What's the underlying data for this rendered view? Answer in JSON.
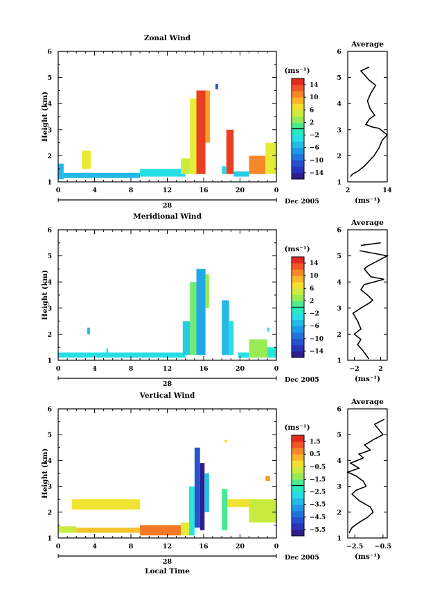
{
  "chart_data": [
    {
      "type": "heatmap",
      "title": "Zonal Wind",
      "ylabel": "Height (km)",
      "xticks": [
        "0",
        "4",
        "8",
        "12",
        "16",
        "20",
        "0"
      ],
      "yticks": [
        "1",
        "2",
        "3",
        "4",
        "5",
        "6"
      ],
      "xlim": [
        0,
        24
      ],
      "ylim": [
        1,
        6
      ],
      "date_tick": "28",
      "date_suffix": "Dec 2005",
      "colorbar": {
        "unit": "(ms⁻¹)",
        "labels": [
          "14",
          "10",
          "6",
          "2",
          "−2",
          "−6",
          "−10",
          "−14"
        ],
        "range": [
          -16,
          16
        ]
      },
      "cells": [
        {
          "x": [
            0,
            0.6
          ],
          "y": [
            1.1,
            1.7
          ],
          "v": -5
        },
        {
          "x": [
            0.6,
            9
          ],
          "y": [
            1.15,
            1.35
          ],
          "v": -5
        },
        {
          "x": [
            2.6,
            3.6
          ],
          "y": [
            1.5,
            2.2
          ],
          "v": 6
        },
        {
          "x": [
            9,
            14
          ],
          "y": [
            1.2,
            1.5
          ],
          "v": -3
        },
        {
          "x": [
            13.5,
            14.5
          ],
          "y": [
            1.3,
            1.9
          ],
          "v": 5
        },
        {
          "x": [
            14.5,
            15.2
          ],
          "y": [
            1.3,
            4.2
          ],
          "v": 6
        },
        {
          "x": [
            15.2,
            16.2
          ],
          "y": [
            1.3,
            4.5
          ],
          "v": 14
        },
        {
          "x": [
            16.2,
            16.7
          ],
          "y": [
            2.5,
            4.5
          ],
          "v": 10
        },
        {
          "x": [
            18.5,
            19.3
          ],
          "y": [
            1.3,
            3.0
          ],
          "v": 14
        },
        {
          "x": [
            18,
            18.5
          ],
          "y": [
            1.3,
            1.6
          ],
          "v": -3
        },
        {
          "x": [
            17.3,
            17.6
          ],
          "y": [
            4.55,
            4.75
          ],
          "v": -10
        },
        {
          "x": [
            19.3,
            21
          ],
          "y": [
            1.2,
            1.4
          ],
          "v": -4
        },
        {
          "x": [
            21,
            22.8
          ],
          "y": [
            1.3,
            2.0
          ],
          "v": 11
        },
        {
          "x": [
            22.8,
            24
          ],
          "y": [
            1.3,
            2.5
          ],
          "v": 6
        }
      ],
      "profile": {
        "title": "Average",
        "xlabel": "(ms⁻¹)",
        "xticks": [
          "2",
          "14"
        ],
        "xlim": [
          2,
          14
        ],
        "points": [
          [
            8.5,
            5.4
          ],
          [
            6,
            5.25
          ],
          [
            8.5,
            4.9
          ],
          [
            10.5,
            4.7
          ],
          [
            9,
            4.4
          ],
          [
            8,
            4.1
          ],
          [
            8.8,
            3.8
          ],
          [
            10.2,
            3.55
          ],
          [
            8.5,
            3.4
          ],
          [
            7.5,
            3.2
          ],
          [
            9.5,
            3.1
          ],
          [
            11.5,
            3.05
          ],
          [
            14,
            2.8
          ],
          [
            12.5,
            2.6
          ],
          [
            11.5,
            2.3
          ],
          [
            10,
            2.0
          ],
          [
            8.5,
            1.8
          ],
          [
            7,
            1.6
          ],
          [
            5,
            1.4
          ],
          [
            3.5,
            1.3
          ],
          [
            2.8,
            1.2
          ]
        ]
      }
    },
    {
      "type": "heatmap",
      "title": "Meridional Wind",
      "ylabel": "Height (km)",
      "xticks": [
        "0",
        "4",
        "8",
        "12",
        "16",
        "20",
        "0"
      ],
      "yticks": [
        "1",
        "2",
        "3",
        "4",
        "5",
        "6"
      ],
      "xlim": [
        0,
        24
      ],
      "ylim": [
        1,
        6
      ],
      "date_tick": "28",
      "date_suffix": "Dec 2005",
      "colorbar": {
        "unit": "(ms⁻¹)",
        "labels": [
          "14",
          "10",
          "6",
          "2",
          "−2",
          "−6",
          "−10",
          "−14"
        ],
        "range": [
          -16,
          16
        ]
      },
      "cells": [
        {
          "x": [
            0,
            9
          ],
          "y": [
            1.1,
            1.3
          ],
          "v": -3
        },
        {
          "x": [
            3.2,
            3.5
          ],
          "y": [
            2.0,
            2.25
          ],
          "v": -5
        },
        {
          "x": [
            5.3,
            5.5
          ],
          "y": [
            1.3,
            1.45
          ],
          "v": -3
        },
        {
          "x": [
            9,
            14
          ],
          "y": [
            1.1,
            1.3
          ],
          "v": -3
        },
        {
          "x": [
            13.7,
            14.5
          ],
          "y": [
            1.2,
            2.5
          ],
          "v": -4
        },
        {
          "x": [
            14.5,
            15.2
          ],
          "y": [
            1.2,
            4.0
          ],
          "v": 2
        },
        {
          "x": [
            15.2,
            16.2
          ],
          "y": [
            1.2,
            4.5
          ],
          "v": -6
        },
        {
          "x": [
            16.2,
            16.6
          ],
          "y": [
            3.0,
            4.3
          ],
          "v": 3
        },
        {
          "x": [
            18,
            18.8
          ],
          "y": [
            1.2,
            3.3
          ],
          "v": -5
        },
        {
          "x": [
            18.8,
            19.3
          ],
          "y": [
            1.2,
            2.5
          ],
          "v": -3
        },
        {
          "x": [
            19.8,
            21
          ],
          "y": [
            1.1,
            1.3
          ],
          "v": -3
        },
        {
          "x": [
            21,
            23
          ],
          "y": [
            1.1,
            1.8
          ],
          "v": 3
        },
        {
          "x": [
            23,
            24
          ],
          "y": [
            1.1,
            1.5
          ],
          "v": -2
        },
        {
          "x": [
            23,
            23.2
          ],
          "y": [
            2.1,
            2.25
          ],
          "v": -3
        }
      ],
      "profile": {
        "title": "Average",
        "xlabel": "(ms⁻¹)",
        "xticks": [
          "−2",
          "2"
        ],
        "xlim": [
          -3,
          3
        ],
        "points": [
          [
            2,
            5.5
          ],
          [
            -1,
            5.4
          ],
          [
            -1.2,
            5.2
          ],
          [
            3,
            5.0
          ],
          [
            1.5,
            4.8
          ],
          [
            0,
            4.6
          ],
          [
            -0.5,
            4.5
          ],
          [
            0.5,
            4.2
          ],
          [
            2.5,
            4.1
          ],
          [
            -0.5,
            3.9
          ],
          [
            -1,
            3.7
          ],
          [
            0,
            3.5
          ],
          [
            0.8,
            3.3
          ],
          [
            0.3,
            3.2
          ],
          [
            -1,
            3.0
          ],
          [
            -2.2,
            2.8
          ],
          [
            -1.5,
            2.5
          ],
          [
            -1,
            2.2
          ],
          [
            -2,
            2.0
          ],
          [
            -1,
            1.8
          ],
          [
            -1.5,
            1.6
          ],
          [
            -0.8,
            1.4
          ],
          [
            -0.2,
            1.2
          ],
          [
            0.2,
            1.05
          ]
        ]
      }
    },
    {
      "type": "heatmap",
      "title": "Vertical Wind",
      "ylabel": "Height (km)",
      "xlabel": "Local Time",
      "xticks": [
        "0",
        "4",
        "8",
        "12",
        "16",
        "20",
        "0"
      ],
      "yticks": [
        "1",
        "2",
        "3",
        "4",
        "5",
        "6"
      ],
      "xlim": [
        0,
        24
      ],
      "ylim": [
        1,
        6
      ],
      "date_tick": "28",
      "date_suffix": "Dec 2005",
      "colorbar": {
        "unit": "(ms⁻¹)",
        "labels": [
          "1.5",
          "0.5",
          "−0.5",
          "−1.5",
          "−2.5",
          "−3.5",
          "−4.5",
          "−5.5"
        ],
        "range": [
          -6.0,
          2.0
        ]
      },
      "cells": [
        {
          "x": [
            0,
            2
          ],
          "y": [
            1.2,
            1.45
          ],
          "v": -0.8
        },
        {
          "x": [
            2,
            9
          ],
          "y": [
            1.2,
            1.4
          ],
          "v": 0.1
        },
        {
          "x": [
            1.5,
            9
          ],
          "y": [
            2.1,
            2.5
          ],
          "v": -0.3
        },
        {
          "x": [
            9,
            13.5
          ],
          "y": [
            1.1,
            1.5
          ],
          "v": 0.9
        },
        {
          "x": [
            13.5,
            14.5
          ],
          "y": [
            1.1,
            1.6
          ],
          "v": -0.5
        },
        {
          "x": [
            14.4,
            15
          ],
          "y": [
            1.1,
            3.0
          ],
          "v": -2.5
        },
        {
          "x": [
            15,
            15.6
          ],
          "y": [
            1.4,
            4.5
          ],
          "v": -4.7
        },
        {
          "x": [
            15.6,
            16.1
          ],
          "y": [
            1.3,
            3.9
          ],
          "v": -5.8
        },
        {
          "x": [
            16.1,
            16.6
          ],
          "y": [
            2.0,
            3.5
          ],
          "v": -3.2
        },
        {
          "x": [
            18,
            18.6
          ],
          "y": [
            1.3,
            2.9
          ],
          "v": -1.8
        },
        {
          "x": [
            18.6,
            21
          ],
          "y": [
            2.2,
            2.5
          ],
          "v": -0.3
        },
        {
          "x": [
            21,
            24
          ],
          "y": [
            1.6,
            2.5
          ],
          "v": -0.8
        },
        {
          "x": [
            22.8,
            23.3
          ],
          "y": [
            3.2,
            3.4
          ],
          "v": 0.5
        },
        {
          "x": [
            18.3,
            18.6
          ],
          "y": [
            4.7,
            4.8
          ],
          "v": -0.3
        }
      ],
      "profile": {
        "title": "Average",
        "xlabel": "(ms⁻¹)",
        "xticks": [
          "−2.5",
          "−0.5"
        ],
        "xlim": [
          -3,
          -0.2
        ],
        "points": [
          [
            -0.4,
            5.6
          ],
          [
            -1.1,
            5.4
          ],
          [
            -0.8,
            5.2
          ],
          [
            -0.5,
            5.0
          ],
          [
            -1.2,
            4.8
          ],
          [
            -1.8,
            4.6
          ],
          [
            -1.4,
            4.4
          ],
          [
            -2.2,
            4.25
          ],
          [
            -1.9,
            4.1
          ],
          [
            -2.8,
            3.9
          ],
          [
            -2.2,
            3.7
          ],
          [
            -3.0,
            3.55
          ],
          [
            -2.4,
            3.4
          ],
          [
            -1.9,
            3.2
          ],
          [
            -1.7,
            3.0
          ],
          [
            -2.4,
            2.85
          ],
          [
            -2.7,
            2.7
          ],
          [
            -2.2,
            2.45
          ],
          [
            -1.4,
            2.2
          ],
          [
            -1.2,
            2.0
          ],
          [
            -1.6,
            1.8
          ],
          [
            -2.2,
            1.6
          ],
          [
            -2.7,
            1.4
          ],
          [
            -2.9,
            1.2
          ]
        ]
      }
    }
  ]
}
